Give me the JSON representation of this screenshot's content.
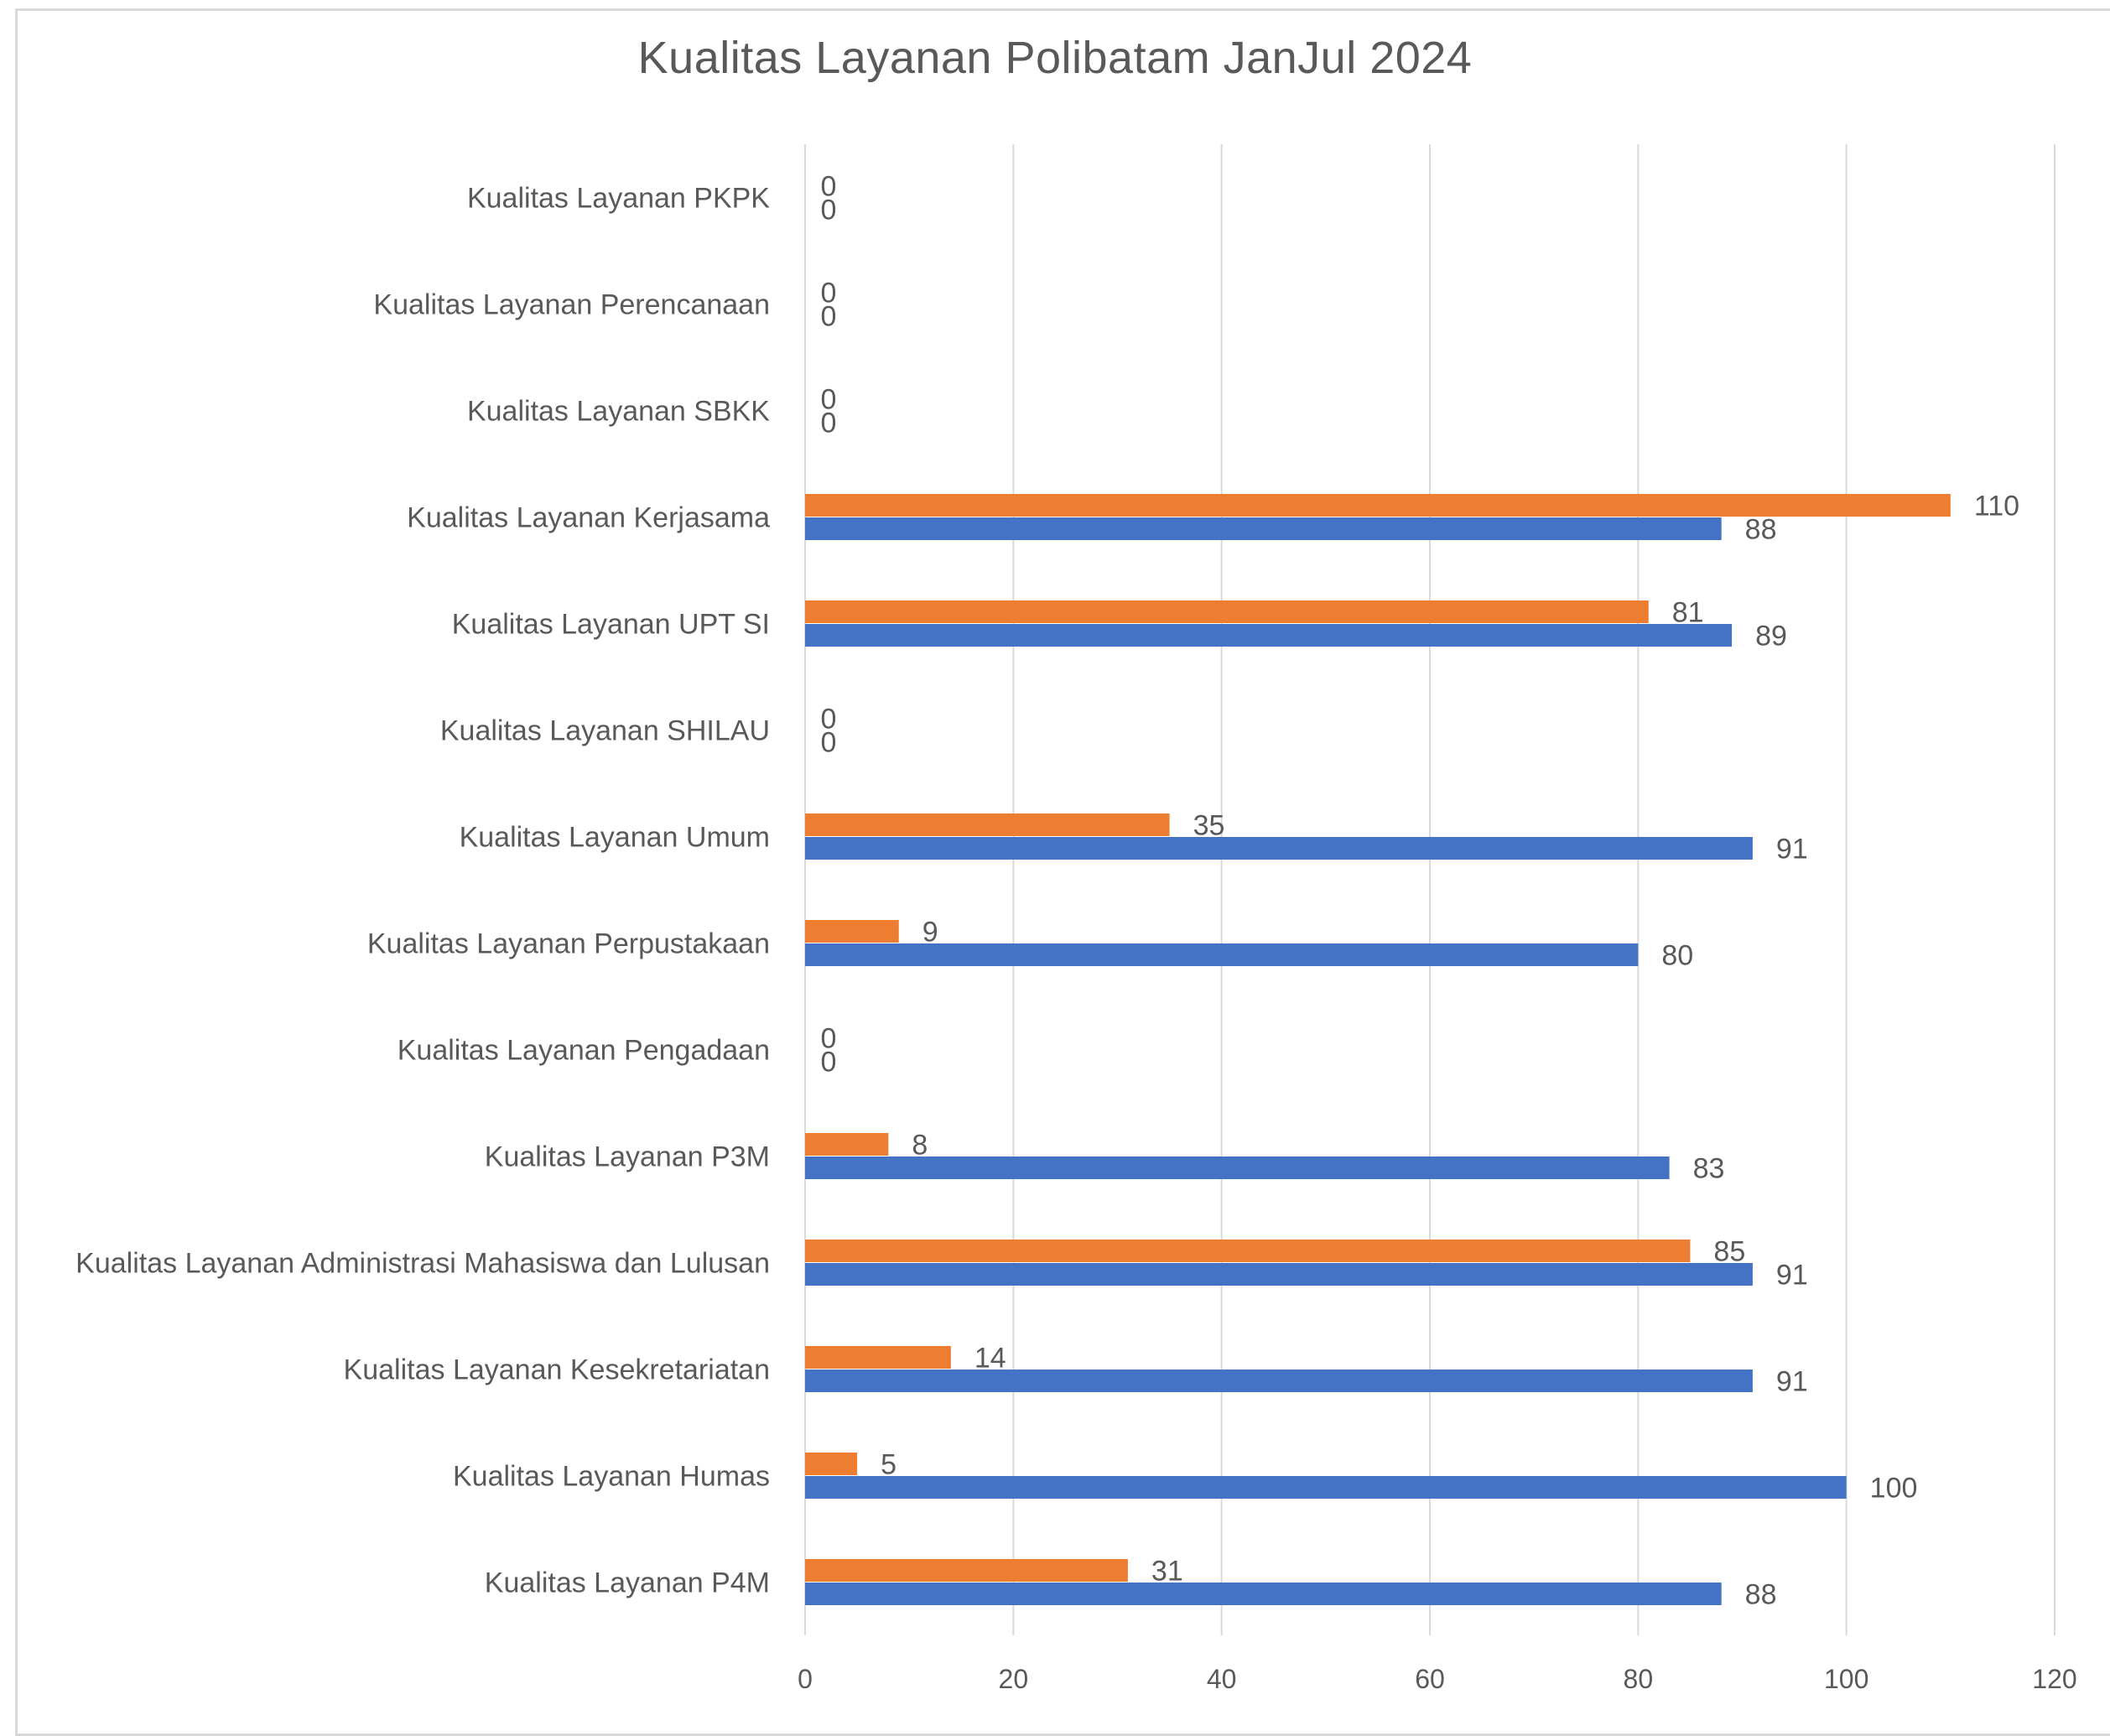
{
  "chart_data": {
    "type": "bar",
    "orientation": "horizontal",
    "title": "Kualitas Layanan Polibatam JanJul 2024",
    "xlabel": "",
    "ylabel": "",
    "xlim": [
      0,
      120
    ],
    "x_ticks": [
      0,
      20,
      40,
      60,
      80,
      100,
      120
    ],
    "grid": true,
    "legend": "none",
    "categories": [
      "Kualitas Layanan P4M",
      "Kualitas Layanan Humas",
      "Kualitas Layanan Kesekretariatan",
      "Kualitas  Layanan Administrasi Mahasiswa dan Lulusan",
      "Kualitas Layanan P3M",
      "Kualitas Layanan Pengadaan",
      "Kualitas  Layanan  Perpustakaan",
      "Kualitas Layanan Umum",
      "Kualitas Layanan SHILAU",
      "Kualitas Layanan UPT SI",
      "Kualitas Layanan Kerjasama",
      "Kualitas Layanan SBKK",
      "Kualitas Layanan Perencanaan",
      "Kualitas Layanan PKPK"
    ],
    "series": [
      {
        "color": "#4472c4",
        "values": [
          88,
          100,
          91,
          91,
          83,
          0,
          80,
          91,
          0,
          89,
          88,
          0,
          0,
          0
        ]
      },
      {
        "color": "#ed7d31",
        "values": [
          31,
          5,
          14,
          85,
          8,
          0,
          9,
          35,
          0,
          81,
          110,
          0,
          0,
          0
        ]
      }
    ]
  }
}
